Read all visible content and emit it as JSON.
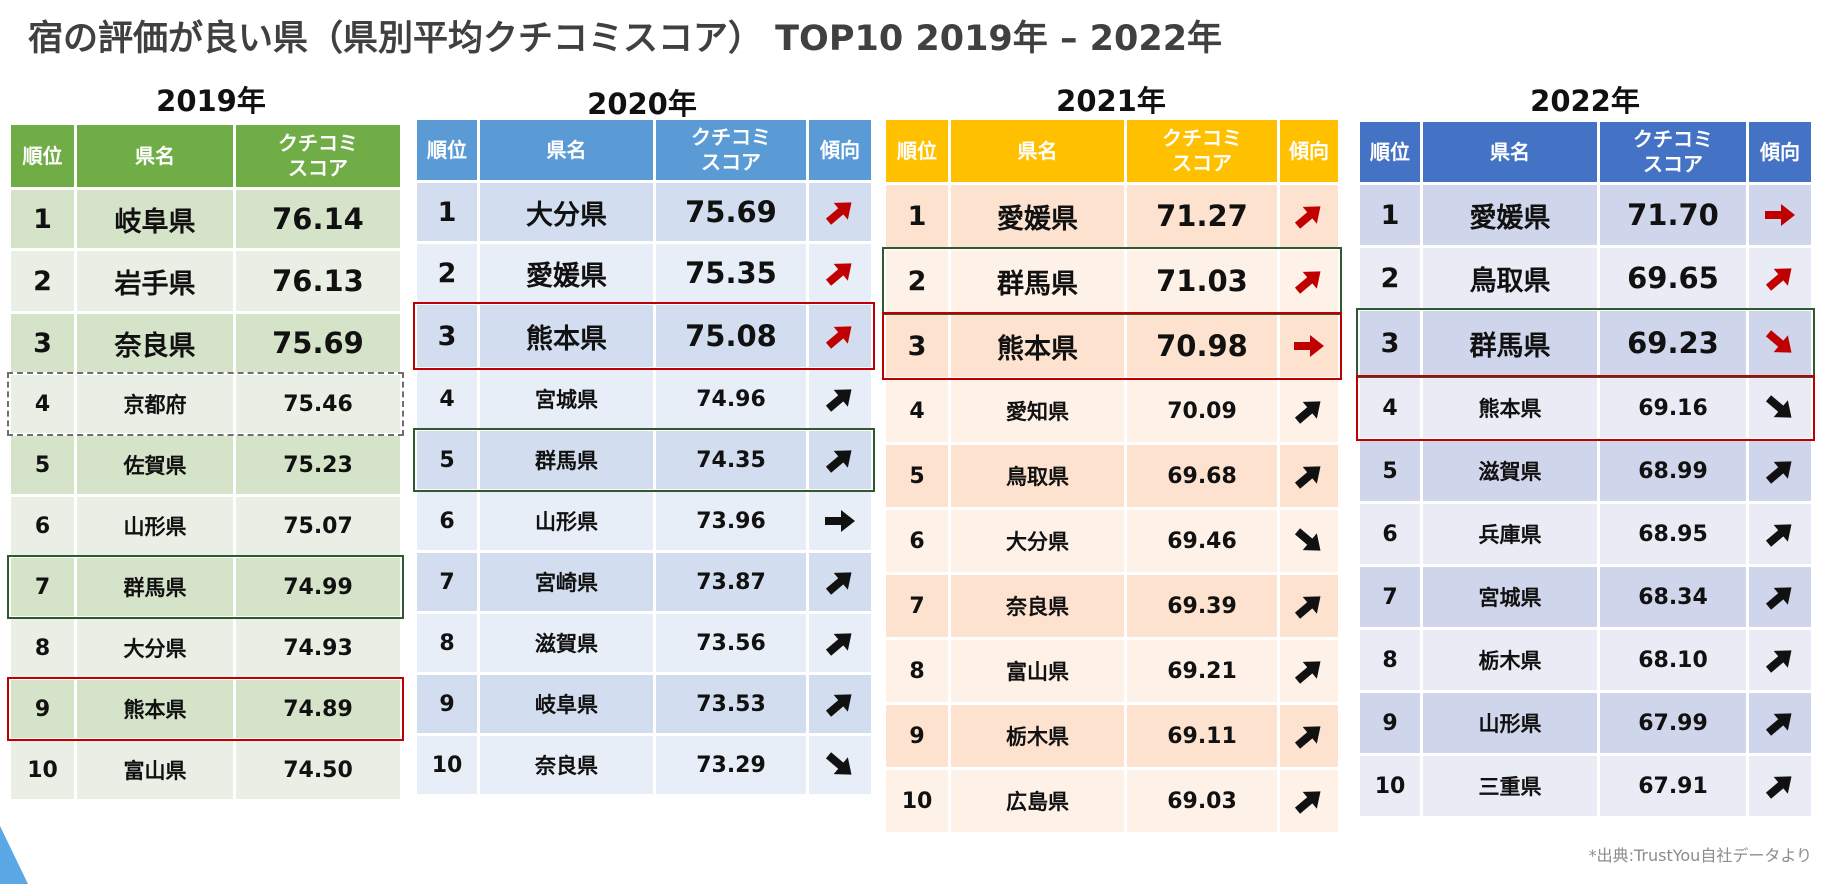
{
  "title": "宿の評価が良い県（県別平均クチコミスコア） TOP10  2019年 – 2022年",
  "source": "*出典:TrustYou自社データより",
  "colors": {
    "green": "#70ad47",
    "blue": "#5b9bd5",
    "gold": "#ffc000",
    "navy": "#4472c4"
  },
  "years": [
    {
      "year": "2019年",
      "headers": {
        "rank": "順位",
        "pref": "県名",
        "score": "クチコミ\nスコア"
      },
      "rows": [
        {
          "rank": "1",
          "pref": "岐阜県",
          "score": "76.14"
        },
        {
          "rank": "2",
          "pref": "岩手県",
          "score": "76.13"
        },
        {
          "rank": "3",
          "pref": "奈良県",
          "score": "75.69"
        },
        {
          "rank": "4",
          "pref": "京都府",
          "score": "75.46"
        },
        {
          "rank": "5",
          "pref": "佐賀県",
          "score": "75.23"
        },
        {
          "rank": "6",
          "pref": "山形県",
          "score": "75.07"
        },
        {
          "rank": "7",
          "pref": "群馬県",
          "score": "74.99"
        },
        {
          "rank": "8",
          "pref": "大分県",
          "score": "74.93"
        },
        {
          "rank": "9",
          "pref": "熊本県",
          "score": "74.89"
        },
        {
          "rank": "10",
          "pref": "富山県",
          "score": "74.50"
        }
      ]
    },
    {
      "year": "2020年",
      "headers": {
        "rank": "順位",
        "pref": "県名",
        "score": "クチコミ\nスコア",
        "trend": "傾向"
      },
      "rows": [
        {
          "rank": "1",
          "pref": "大分県",
          "score": "75.69",
          "trend": "up"
        },
        {
          "rank": "2",
          "pref": "愛媛県",
          "score": "75.35",
          "trend": "up"
        },
        {
          "rank": "3",
          "pref": "熊本県",
          "score": "75.08",
          "trend": "up"
        },
        {
          "rank": "4",
          "pref": "宮城県",
          "score": "74.96",
          "trend": "up"
        },
        {
          "rank": "5",
          "pref": "群馬県",
          "score": "74.35",
          "trend": "up"
        },
        {
          "rank": "6",
          "pref": "山形県",
          "score": "73.96",
          "trend": "flat"
        },
        {
          "rank": "7",
          "pref": "宮崎県",
          "score": "73.87",
          "trend": "up"
        },
        {
          "rank": "8",
          "pref": "滋賀県",
          "score": "73.56",
          "trend": "up"
        },
        {
          "rank": "9",
          "pref": "岐阜県",
          "score": "73.53",
          "trend": "up"
        },
        {
          "rank": "10",
          "pref": "奈良県",
          "score": "73.29",
          "trend": "down"
        }
      ]
    },
    {
      "year": "2021年",
      "headers": {
        "rank": "順位",
        "pref": "県名",
        "score": "クチコミ\nスコア",
        "trend": "傾向"
      },
      "rows": [
        {
          "rank": "1",
          "pref": "愛媛県",
          "score": "71.27",
          "trend": "up"
        },
        {
          "rank": "2",
          "pref": "群馬県",
          "score": "71.03",
          "trend": "up"
        },
        {
          "rank": "3",
          "pref": "熊本県",
          "score": "70.98",
          "trend": "flat"
        },
        {
          "rank": "4",
          "pref": "愛知県",
          "score": "70.09",
          "trend": "up"
        },
        {
          "rank": "5",
          "pref": "鳥取県",
          "score": "69.68",
          "trend": "up"
        },
        {
          "rank": "6",
          "pref": "大分県",
          "score": "69.46",
          "trend": "down"
        },
        {
          "rank": "7",
          "pref": "奈良県",
          "score": "69.39",
          "trend": "up"
        },
        {
          "rank": "8",
          "pref": "富山県",
          "score": "69.21",
          "trend": "up"
        },
        {
          "rank": "9",
          "pref": "栃木県",
          "score": "69.11",
          "trend": "up"
        },
        {
          "rank": "10",
          "pref": "広島県",
          "score": "69.03",
          "trend": "up"
        }
      ]
    },
    {
      "year": "2022年",
      "headers": {
        "rank": "順位",
        "pref": "県名",
        "score": "クチコミ\nスコア",
        "trend": "傾向"
      },
      "rows": [
        {
          "rank": "1",
          "pref": "愛媛県",
          "score": "71.70",
          "trend": "flat"
        },
        {
          "rank": "2",
          "pref": "鳥取県",
          "score": "69.65",
          "trend": "up"
        },
        {
          "rank": "3",
          "pref": "群馬県",
          "score": "69.23",
          "trend": "down"
        },
        {
          "rank": "4",
          "pref": "熊本県",
          "score": "69.16",
          "trend": "down"
        },
        {
          "rank": "5",
          "pref": "滋賀県",
          "score": "68.99",
          "trend": "up"
        },
        {
          "rank": "6",
          "pref": "兵庫県",
          "score": "68.95",
          "trend": "up"
        },
        {
          "rank": "7",
          "pref": "宮城県",
          "score": "68.34",
          "trend": "up"
        },
        {
          "rank": "8",
          "pref": "栃木県",
          "score": "68.10",
          "trend": "up"
        },
        {
          "rank": "9",
          "pref": "山形県",
          "score": "67.99",
          "trend": "up"
        },
        {
          "rank": "10",
          "pref": "三重県",
          "score": "67.91",
          "trend": "up"
        }
      ]
    }
  ]
}
